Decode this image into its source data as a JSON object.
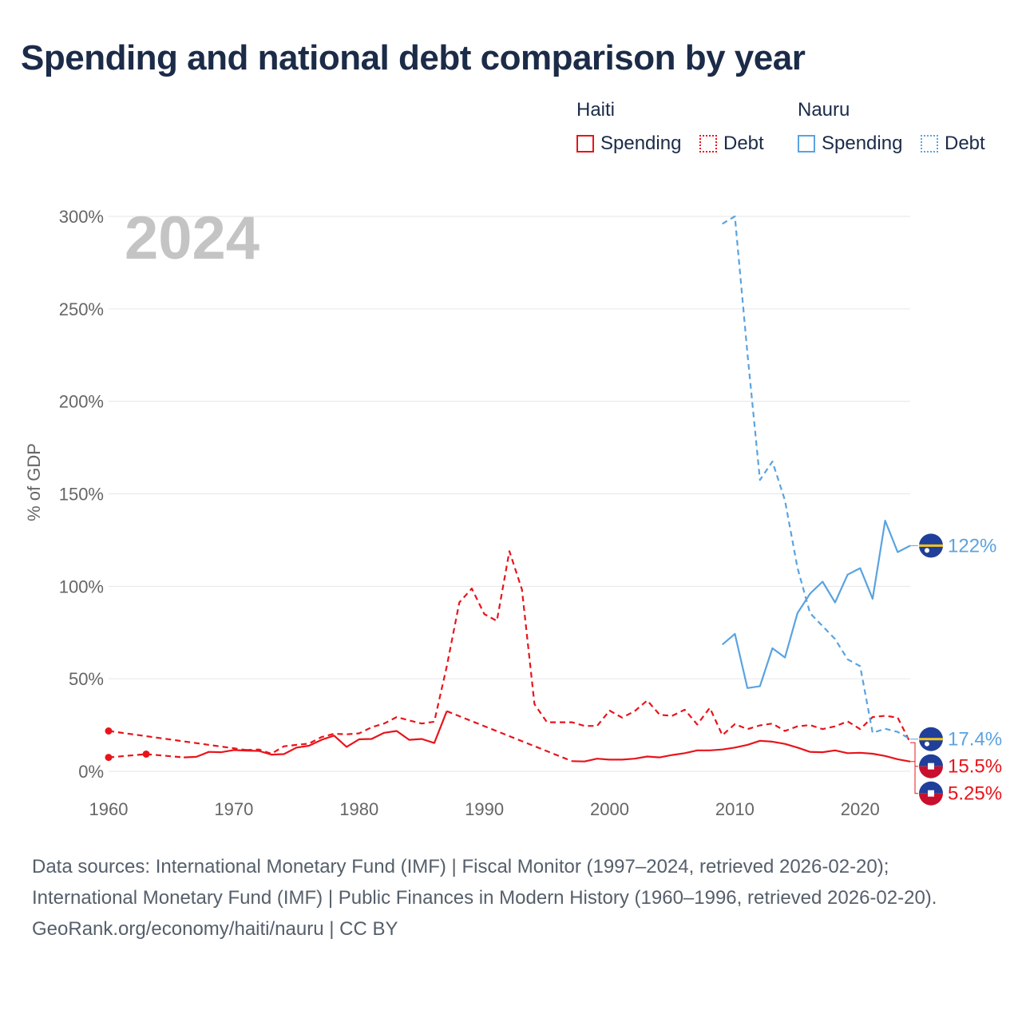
{
  "title": "Spending and national debt comparison by year",
  "legend": {
    "groups": [
      {
        "name": "Haiti",
        "color": "#e8141b",
        "items": [
          {
            "label": "Spending",
            "style": "solid"
          },
          {
            "label": "Debt",
            "style": "dotted"
          }
        ]
      },
      {
        "name": "Nauru",
        "color": "#5aa3e0",
        "items": [
          {
            "label": "Spending",
            "style": "solid"
          },
          {
            "label": "Debt",
            "style": "dotted"
          }
        ]
      }
    ]
  },
  "year_watermark": "2024",
  "footer": {
    "sources": "Data sources: International Monetary Fund (IMF) | Fiscal Monitor (1997–2024, retrieved 2026-02-20); International Monetary Fund (IMF) | Public Finances in Modern History (1960–1996, retrieved 2026-02-20).",
    "credit": "GeoRank.org/economy/haiti/nauru | CC BY"
  },
  "colors": {
    "haiti": "#e8141b",
    "nauru": "#5aa3e0",
    "grid": "#e6e6e6",
    "axis_text": "#666666",
    "watermark": "#c4c4c4"
  },
  "chart_data": {
    "type": "line",
    "title": "Spending and national debt comparison by year",
    "xlabel": "",
    "ylabel": "% of GDP",
    "xlim": [
      1960,
      2024
    ],
    "ylim": [
      0,
      300
    ],
    "x_ticks": [
      1960,
      1970,
      1980,
      1990,
      2000,
      2010,
      2020
    ],
    "y_ticks": [
      0,
      50,
      100,
      150,
      200,
      250,
      300
    ],
    "y_tick_labels": [
      "0%",
      "50%",
      "100%",
      "150%",
      "200%",
      "250%",
      "300%"
    ],
    "grid": true,
    "series": [
      {
        "name": "Haiti Spending",
        "country": "Haiti",
        "color": "#e8141b",
        "dash": "solid",
        "end_label": "5.25%",
        "segments": [
          {
            "dashed": true,
            "points": [
              [
                1960,
                7.5
              ],
              [
                1963,
                9.3
              ]
            ]
          },
          {
            "dashed": true,
            "points": [
              [
                1963,
                9.3
              ],
              [
                1966,
                7.5
              ]
            ]
          },
          {
            "dashed": false,
            "points": [
              [
                1966,
                7.5
              ],
              [
                1967,
                7.8
              ],
              [
                1968,
                10.5
              ],
              [
                1969,
                10.3
              ],
              [
                1970,
                11.5
              ],
              [
                1971,
                11.2
              ],
              [
                1972,
                11.0
              ],
              [
                1973,
                9.0
              ],
              [
                1974,
                9.3
              ],
              [
                1975,
                12.8
              ],
              [
                1976,
                13.8
              ],
              [
                1977,
                17.0
              ],
              [
                1978,
                19.3
              ],
              [
                1979,
                13.2
              ],
              [
                1980,
                17.3
              ],
              [
                1981,
                17.5
              ],
              [
                1982,
                20.8
              ],
              [
                1983,
                21.8
              ],
              [
                1984,
                17.0
              ],
              [
                1985,
                17.5
              ],
              [
                1986,
                15.3
              ],
              [
                1987,
                32.5
              ]
            ]
          },
          {
            "dashed": true,
            "points": [
              [
                1987,
                32.5
              ],
              [
                1997,
                5.5
              ]
            ]
          },
          {
            "dashed": false,
            "points": [
              [
                1997,
                5.5
              ],
              [
                1998,
                5.3
              ],
              [
                1999,
                6.8
              ],
              [
                2000,
                6.3
              ],
              [
                2001,
                6.3
              ],
              [
                2002,
                6.8
              ],
              [
                2003,
                8.0
              ],
              [
                2004,
                7.5
              ],
              [
                2005,
                8.8
              ],
              [
                2006,
                9.8
              ],
              [
                2007,
                11.3
              ],
              [
                2008,
                11.3
              ],
              [
                2009,
                11.8
              ],
              [
                2010,
                12.8
              ],
              [
                2011,
                14.3
              ],
              [
                2012,
                16.5
              ],
              [
                2013,
                16.0
              ],
              [
                2014,
                14.8
              ],
              [
                2015,
                12.8
              ],
              [
                2016,
                10.5
              ],
              [
                2017,
                10.3
              ],
              [
                2018,
                11.3
              ],
              [
                2019,
                9.8
              ],
              [
                2020,
                10.0
              ],
              [
                2021,
                9.5
              ],
              [
                2022,
                8.3
              ],
              [
                2023,
                6.5
              ],
              [
                2024,
                5.25
              ]
            ]
          }
        ],
        "isolated_points": [
          [
            1960,
            7.5
          ],
          [
            1963,
            9.3
          ]
        ]
      },
      {
        "name": "Haiti Debt",
        "country": "Haiti",
        "color": "#e8141b",
        "dash": "dotted",
        "end_label": "15.5%",
        "segments": [
          {
            "dashed": true,
            "points": [
              [
                1960,
                21.8
              ],
              [
                1971,
                11.5
              ]
            ]
          },
          {
            "dashed": true,
            "points": [
              [
                1971,
                11.5
              ],
              [
                1972,
                11.8
              ],
              [
                1973,
                9.5
              ],
              [
                1974,
                13.5
              ],
              [
                1975,
                14.3
              ],
              [
                1976,
                15.0
              ],
              [
                1977,
                18.5
              ],
              [
                1978,
                20.3
              ],
              [
                1979,
                20.0
              ],
              [
                1980,
                20.5
              ],
              [
                1981,
                23.8
              ],
              [
                1982,
                25.8
              ],
              [
                1983,
                29.3
              ],
              [
                1984,
                27.5
              ],
              [
                1985,
                25.8
              ],
              [
                1986,
                26.8
              ],
              [
                1987,
                56.8
              ],
              [
                1988,
                91.3
              ],
              [
                1989,
                98.8
              ],
              [
                1990,
                85.0
              ],
              [
                1991,
                81.3
              ],
              [
                1992,
                119.0
              ],
              [
                1993,
                98.3
              ],
              [
                1994,
                36.3
              ],
              [
                1995,
                26.5
              ],
              [
                1996,
                26.5
              ],
              [
                1997,
                26.5
              ],
              [
                1998,
                24.5
              ],
              [
                1999,
                24.5
              ],
              [
                2000,
                32.8
              ],
              [
                2001,
                29.0
              ],
              [
                2002,
                32.5
              ],
              [
                2003,
                38.3
              ],
              [
                2004,
                30.5
              ],
              [
                2005,
                30.0
              ],
              [
                2006,
                33.3
              ],
              [
                2007,
                25.3
              ],
              [
                2008,
                34.3
              ],
              [
                2009,
                19.5
              ],
              [
                2010,
                25.5
              ],
              [
                2011,
                22.8
              ],
              [
                2012,
                24.8
              ],
              [
                2013,
                25.8
              ],
              [
                2014,
                21.8
              ],
              [
                2015,
                24.3
              ],
              [
                2016,
                25.0
              ],
              [
                2017,
                22.8
              ],
              [
                2018,
                24.3
              ],
              [
                2019,
                27.0
              ],
              [
                2020,
                22.8
              ],
              [
                2021,
                29.3
              ],
              [
                2022,
                30.0
              ],
              [
                2023,
                29.0
              ],
              [
                2024,
                15.5
              ]
            ]
          }
        ],
        "isolated_points": [
          [
            1960,
            21.8
          ]
        ]
      },
      {
        "name": "Nauru Spending",
        "country": "Nauru",
        "color": "#5aa3e0",
        "dash": "solid",
        "end_label": "122%",
        "segments": [
          {
            "dashed": false,
            "points": [
              [
                2009,
                68.5
              ],
              [
                2010,
                74.3
              ],
              [
                2011,
                45.0
              ],
              [
                2012,
                46.0
              ],
              [
                2013,
                66.5
              ],
              [
                2014,
                61.5
              ],
              [
                2015,
                85.5
              ],
              [
                2016,
                96.0
              ],
              [
                2017,
                102.5
              ],
              [
                2018,
                91.3
              ],
              [
                2019,
                106.3
              ],
              [
                2020,
                109.8
              ],
              [
                2021,
                93.3
              ],
              [
                2022,
                135.5
              ],
              [
                2023,
                118.5
              ],
              [
                2024,
                122.0
              ]
            ]
          }
        ],
        "isolated_points": []
      },
      {
        "name": "Nauru Debt",
        "country": "Nauru",
        "color": "#5aa3e0",
        "dash": "dotted",
        "end_label": "17.4%",
        "segments": [
          {
            "dashed": true,
            "points": [
              [
                2009,
                296.0
              ],
              [
                2010,
                300.0
              ],
              [
                2011,
                226.0
              ],
              [
                2012,
                157.5
              ],
              [
                2013,
                167.5
              ],
              [
                2014,
                146.5
              ],
              [
                2015,
                110.0
              ],
              [
                2016,
                85.5
              ],
              [
                2017,
                78.5
              ],
              [
                2018,
                71.5
              ],
              [
                2019,
                60.5
              ],
              [
                2020,
                56.8
              ],
              [
                2021,
                20.8
              ],
              [
                2022,
                23.0
              ],
              [
                2023,
                21.3
              ],
              [
                2024,
                17.4
              ]
            ]
          }
        ],
        "isolated_points": []
      }
    ]
  }
}
